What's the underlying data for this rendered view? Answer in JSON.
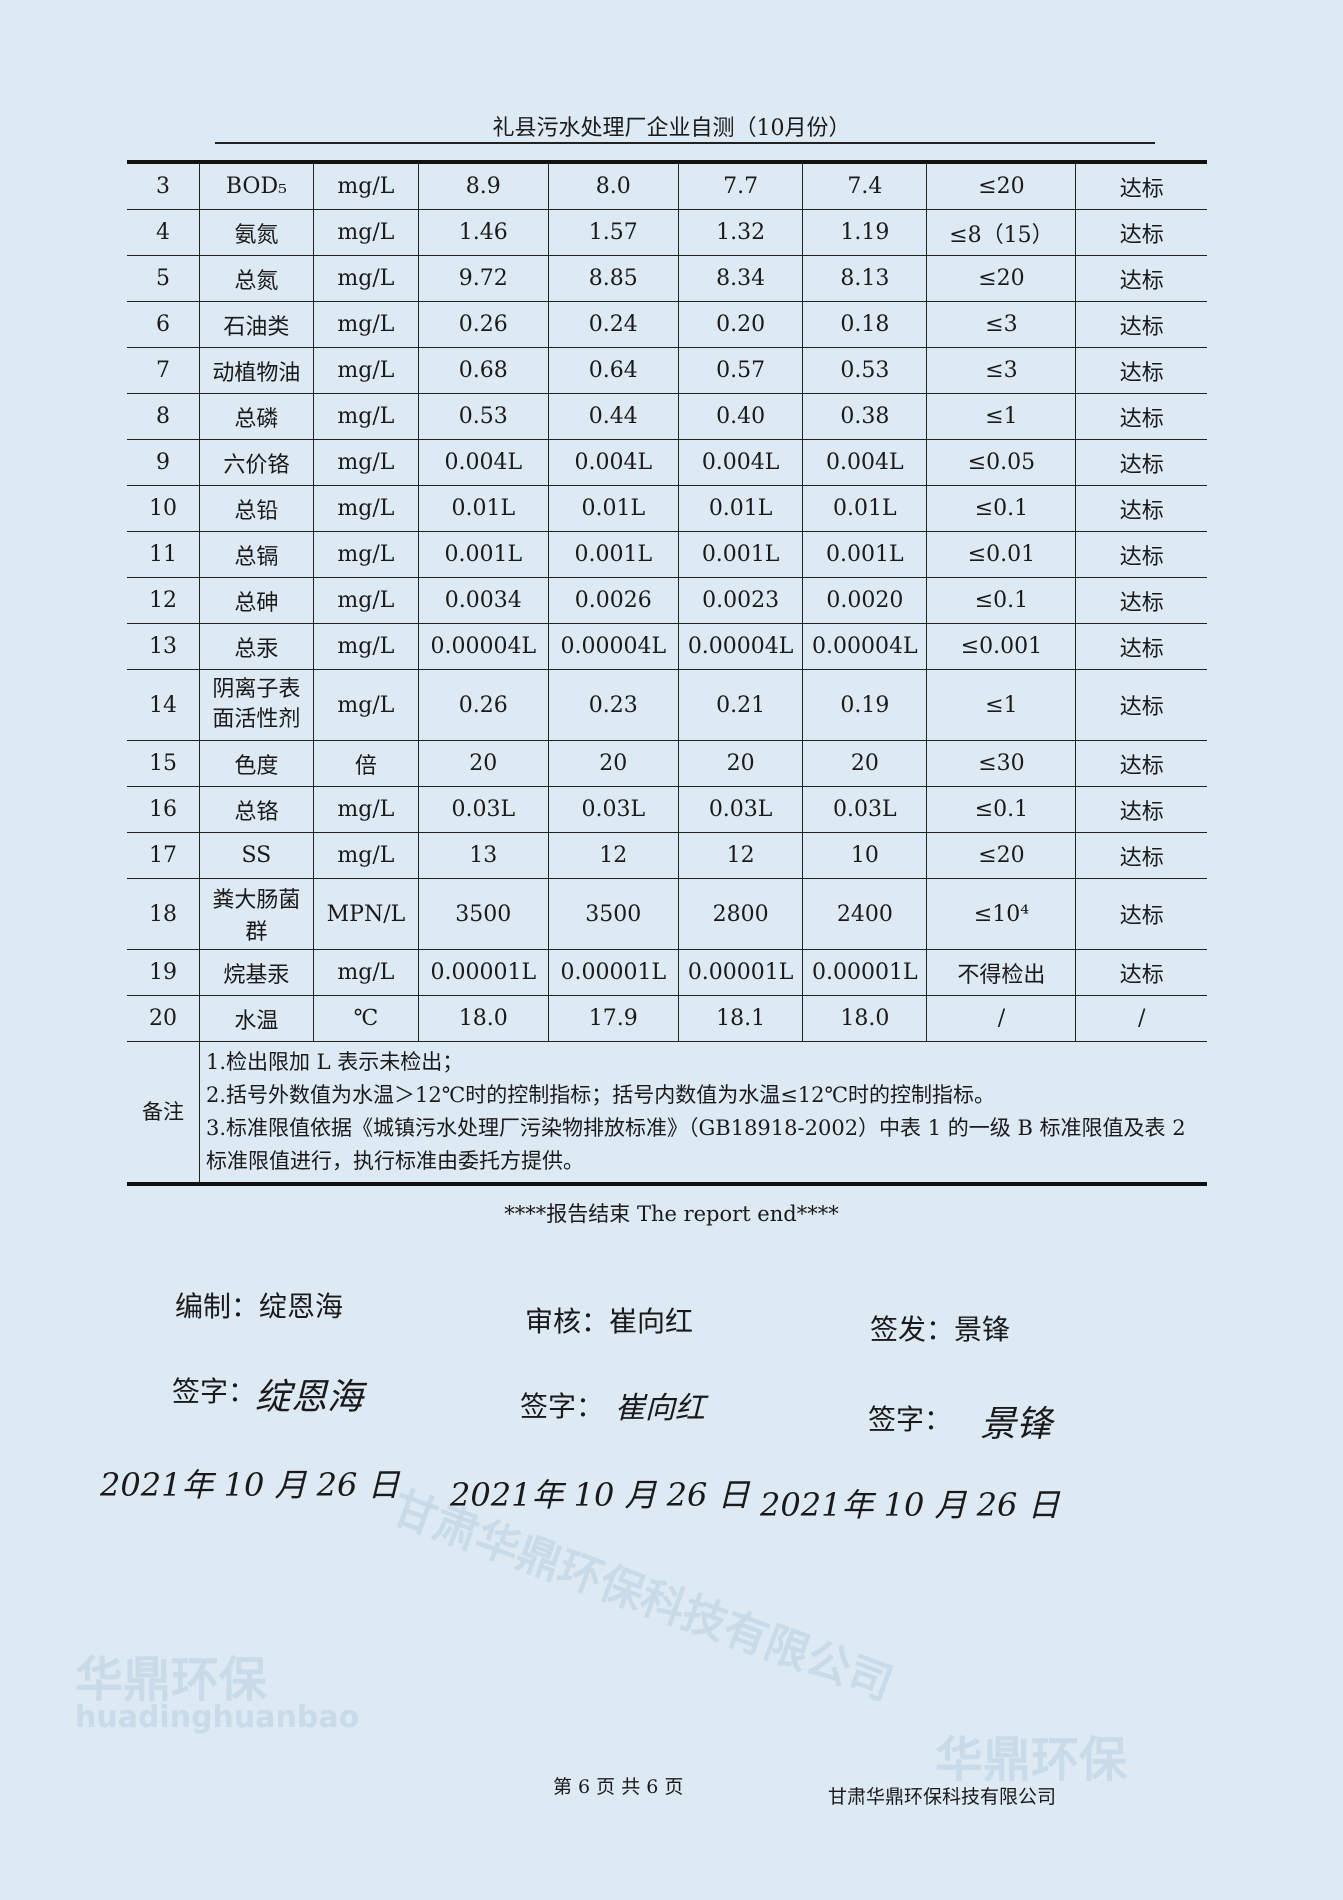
{
  "header": {
    "title": "礼县污水处理厂企业自测（10月份）"
  },
  "table": {
    "rows": [
      {
        "no": "3",
        "item": "BOD₅",
        "unit": "mg/L",
        "v": [
          "8.9",
          "8.0",
          "7.7",
          "7.4"
        ],
        "limit": "≤20",
        "result": "达标"
      },
      {
        "no": "4",
        "item": "氨氮",
        "unit": "mg/L",
        "v": [
          "1.46",
          "1.57",
          "1.32",
          "1.19"
        ],
        "limit": "≤8（15）",
        "result": "达标"
      },
      {
        "no": "5",
        "item": "总氮",
        "unit": "mg/L",
        "v": [
          "9.72",
          "8.85",
          "8.34",
          "8.13"
        ],
        "limit": "≤20",
        "result": "达标"
      },
      {
        "no": "6",
        "item": "石油类",
        "unit": "mg/L",
        "v": [
          "0.26",
          "0.24",
          "0.20",
          "0.18"
        ],
        "limit": "≤3",
        "result": "达标"
      },
      {
        "no": "7",
        "item": "动植物油",
        "unit": "mg/L",
        "v": [
          "0.68",
          "0.64",
          "0.57",
          "0.53"
        ],
        "limit": "≤3",
        "result": "达标"
      },
      {
        "no": "8",
        "item": "总磷",
        "unit": "mg/L",
        "v": [
          "0.53",
          "0.44",
          "0.40",
          "0.38"
        ],
        "limit": "≤1",
        "result": "达标"
      },
      {
        "no": "9",
        "item": "六价铬",
        "unit": "mg/L",
        "v": [
          "0.004L",
          "0.004L",
          "0.004L",
          "0.004L"
        ],
        "limit": "≤0.05",
        "result": "达标"
      },
      {
        "no": "10",
        "item": "总铅",
        "unit": "mg/L",
        "v": [
          "0.01L",
          "0.01L",
          "0.01L",
          "0.01L"
        ],
        "limit": "≤0.1",
        "result": "达标"
      },
      {
        "no": "11",
        "item": "总镉",
        "unit": "mg/L",
        "v": [
          "0.001L",
          "0.001L",
          "0.001L",
          "0.001L"
        ],
        "limit": "≤0.01",
        "result": "达标"
      },
      {
        "no": "12",
        "item": "总砷",
        "unit": "mg/L",
        "v": [
          "0.0034",
          "0.0026",
          "0.0023",
          "0.0020"
        ],
        "limit": "≤0.1",
        "result": "达标"
      },
      {
        "no": "13",
        "item": "总汞",
        "unit": "mg/L",
        "v": [
          "0.00004L",
          "0.00004L",
          "0.00004L",
          "0.00004L"
        ],
        "limit": "≤0.001",
        "result": "达标"
      },
      {
        "no": "14",
        "item": "阴离子表面活性剂",
        "unit": "mg/L",
        "v": [
          "0.26",
          "0.23",
          "0.21",
          "0.19"
        ],
        "limit": "≤1",
        "result": "达标"
      },
      {
        "no": "15",
        "item": "色度",
        "unit": "倍",
        "v": [
          "20",
          "20",
          "20",
          "20"
        ],
        "limit": "≤30",
        "result": "达标"
      },
      {
        "no": "16",
        "item": "总铬",
        "unit": "mg/L",
        "v": [
          "0.03L",
          "0.03L",
          "0.03L",
          "0.03L"
        ],
        "limit": "≤0.1",
        "result": "达标"
      },
      {
        "no": "17",
        "item": "SS",
        "unit": "mg/L",
        "v": [
          "13",
          "12",
          "12",
          "10"
        ],
        "limit": "≤20",
        "result": "达标"
      },
      {
        "no": "18",
        "item": "粪大肠菌群",
        "unit": "MPN/L",
        "v": [
          "3500",
          "3500",
          "2800",
          "2400"
        ],
        "limit": "≤10⁴",
        "result": "达标"
      },
      {
        "no": "19",
        "item": "烷基汞",
        "unit": "mg/L",
        "v": [
          "0.00001L",
          "0.00001L",
          "0.00001L",
          "0.00001L"
        ],
        "limit": "不得检出",
        "result": "达标"
      },
      {
        "no": "20",
        "item": "水温",
        "unit": "℃",
        "v": [
          "18.0",
          "17.9",
          "18.1",
          "18.0"
        ],
        "limit": "/",
        "result": "/"
      }
    ],
    "remarks_label": "备注",
    "remarks": [
      "1.检出限加 L 表示未检出；",
      "2.括号外数值为水温＞12℃时的控制指标；括号内数值为水温≤12℃时的控制指标。",
      "3.标准限值依据《城镇污水处理厂污染物排放标准》（GB18918-2002）中表 1 的一级 B 标准限值及表 2 标准限值进行，执行标准由委托方提供。"
    ]
  },
  "report_end": "****报告结束  The report end****",
  "signatures": {
    "compiled": "编制：绽恩海",
    "reviewed": "审核：崔向红",
    "issued": "签发：景锋",
    "sign_label": "签字：",
    "hand_names": [
      "绽恩海",
      "崔向红",
      "景锋"
    ],
    "dates": [
      "2021年 10 月 26 日",
      "2021年 10 月 26 日",
      "2021年 10 月 26 日"
    ]
  },
  "footer": {
    "page": "第 6 页 共 6 页",
    "company": "甘肃华鼎环保科技有限公司"
  },
  "watermark": {
    "brand": "华鼎环保",
    "pinyin": "huadinghuanbao",
    "company": "甘肃华鼎环保科技有限公司"
  }
}
